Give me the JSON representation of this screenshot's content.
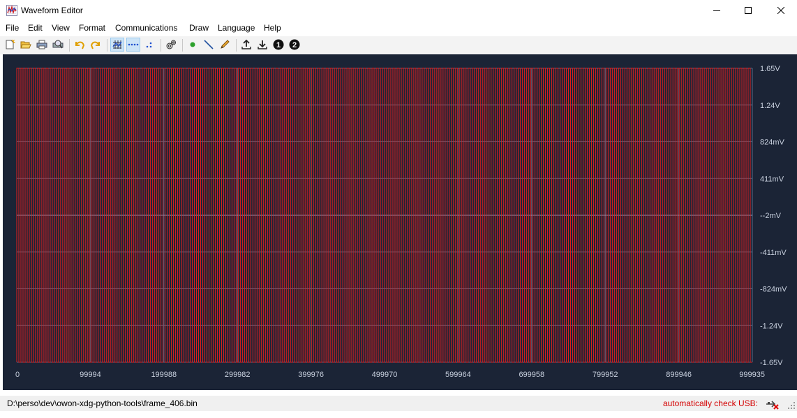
{
  "window": {
    "title": "Waveform Editor"
  },
  "menu": [
    "File",
    "Edit",
    "View",
    "Format",
    "Communications",
    "Draw",
    "Language",
    "Help"
  ],
  "toolbar": {
    "icons": [
      "new-icon",
      "open-icon",
      "print-icon",
      "print-preview-icon",
      "undo-icon",
      "redo-icon",
      "grid-icon",
      "dots-line-icon",
      "dots-icon",
      "settings-icon",
      "point-icon",
      "line-icon",
      "pencil-icon",
      "upload-icon",
      "download-icon",
      "channel-1-icon",
      "channel-2-icon"
    ],
    "channel1": "1",
    "channel2": "2"
  },
  "chart_data": {
    "type": "line",
    "title": "",
    "xlabel": "",
    "ylabel": "",
    "x_ticks": [
      "0",
      "99994",
      "199988",
      "299982",
      "399976",
      "499970",
      "599964",
      "699958",
      "799952",
      "899946",
      "999935"
    ],
    "y_ticks": [
      "1.65V",
      "1.24V",
      "824mV",
      "411mV",
      "--2mV",
      "-411mV",
      "-824mV",
      "-1.24V",
      "-1.65V"
    ],
    "xlim": [
      0,
      999935
    ],
    "ylim": [
      -1.65,
      1.65
    ],
    "series": [
      {
        "waveform": "square",
        "high": 1.65,
        "low": -1.65,
        "color": "#e01e1e"
      }
    ],
    "grid": true,
    "background": "#1b2436"
  },
  "status": {
    "path": "D:\\perso\\dev\\owon-xdg-python-tools\\frame_406.bin",
    "usb_label": "automatically check USB:"
  }
}
